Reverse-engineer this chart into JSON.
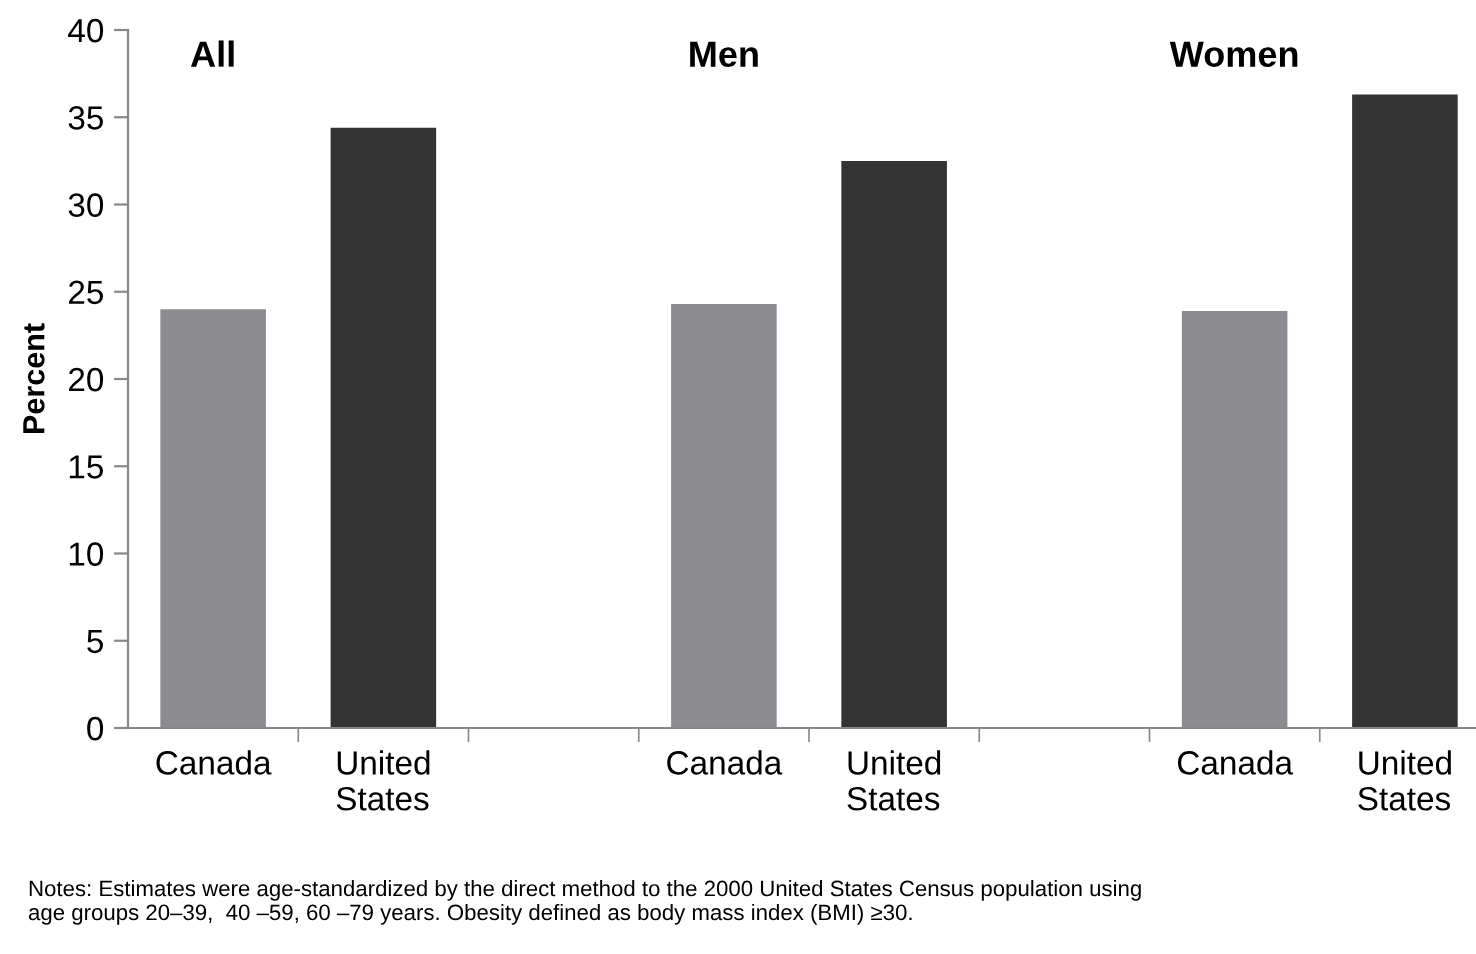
{
  "chart_data": {
    "type": "bar",
    "ylabel": "Percent",
    "categories": [
      "Canada",
      "United\nStates",
      null,
      "Canada",
      "United\nStates",
      null,
      "Canada",
      "United\nStates"
    ],
    "values": [
      24.0,
      34.4,
      null,
      24.3,
      32.5,
      null,
      23.9,
      36.3
    ],
    "colors": [
      "#8c8c90",
      "#333333",
      "#ffffff",
      "#8c8c90",
      "#333333",
      "#ffffff",
      "#8c8c90",
      "#333333"
    ],
    "ylim": [
      0,
      40
    ],
    "yticks": [
      0,
      5,
      10,
      15,
      20,
      25,
      30,
      35,
      40
    ],
    "grid": false,
    "legend": false,
    "annotations": [
      "All",
      "Men",
      "Women",
      "Notes: Estimates were age-standardized by the direct method to the 2000 United States Census population using\nage groups 20–39,  40 –59, 60 –79 years. Obesity defined as body mass index (BMI) ≥30."
    ]
  }
}
